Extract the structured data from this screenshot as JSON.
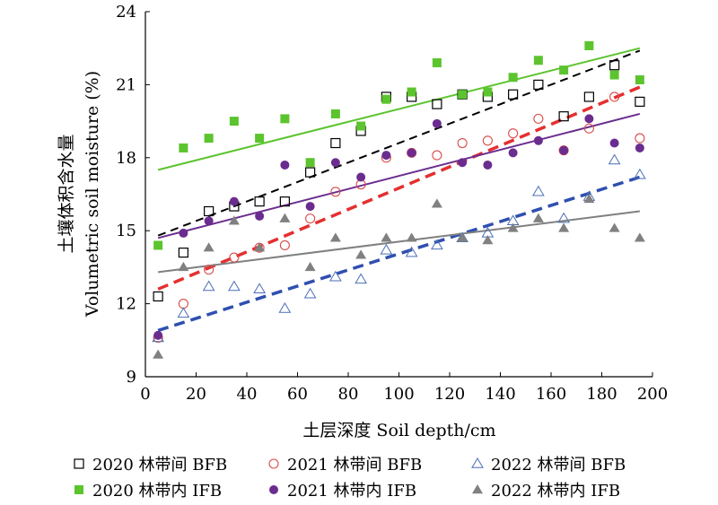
{
  "chart_data": {
    "type": "scatter",
    "title": "",
    "xlabel": "土层深度 Soil depth/cm",
    "ylabel_cn": "土壤体积含水量",
    "ylabel_en": "Volumetric soil moisture (%)",
    "xlim": [
      0,
      200
    ],
    "ylim": [
      9,
      24
    ],
    "xticks": [
      "0",
      "20",
      "40",
      "60",
      "80",
      "100",
      "120",
      "140",
      "160",
      "180",
      "200"
    ],
    "yticks": [
      "9",
      "12",
      "15",
      "18",
      "21",
      "24"
    ],
    "grid": false,
    "legend_position": "bottom",
    "x": [
      5,
      15,
      25,
      35,
      45,
      55,
      65,
      75,
      85,
      95,
      105,
      115,
      125,
      135,
      145,
      155,
      165,
      175,
      185,
      195
    ],
    "series": [
      {
        "name": "2020 林带间 BFB",
        "marker": "open-square",
        "color": "#000000",
        "values": [
          12.3,
          14.1,
          15.8,
          16.0,
          16.2,
          16.2,
          17.4,
          18.6,
          19.1,
          20.5,
          20.5,
          20.2,
          20.6,
          20.5,
          20.6,
          21.0,
          19.7,
          20.5,
          21.8,
          20.3
        ],
        "trend": {
          "from": [
            5,
            14.8
          ],
          "to": [
            195,
            22.4
          ],
          "color": "#000000",
          "dashed": true,
          "width": 2
        }
      },
      {
        "name": "2021 林带间 BFB",
        "marker": "open-circle",
        "color": "#d94b4b",
        "values": [
          10.6,
          12.0,
          13.4,
          13.9,
          14.3,
          14.4,
          15.5,
          16.6,
          16.9,
          18.0,
          18.2,
          18.1,
          18.6,
          18.7,
          19.0,
          19.6,
          18.3,
          19.2,
          20.5,
          18.8
        ],
        "trend": {
          "from": [
            5,
            12.6
          ],
          "to": [
            195,
            20.9
          ],
          "color": "#e52f2f",
          "dashed": true,
          "width": 3.5
        }
      },
      {
        "name": "2022 林带间 BFB",
        "marker": "open-triangle",
        "color": "#4a6fb5",
        "values": [
          10.6,
          11.6,
          12.7,
          12.7,
          12.6,
          11.8,
          12.4,
          13.1,
          13.0,
          14.2,
          14.1,
          14.4,
          14.7,
          14.9,
          15.4,
          16.6,
          15.5,
          16.4,
          17.9,
          17.3
        ],
        "trend": {
          "from": [
            5,
            10.9
          ],
          "to": [
            195,
            17.2
          ],
          "color": "#2f4fb0",
          "dashed": true,
          "width": 3.5
        }
      },
      {
        "name": "2020 林带内 IFB",
        "marker": "filled-square",
        "color": "#5cc42e",
        "values": [
          14.4,
          18.4,
          18.8,
          19.5,
          18.8,
          19.6,
          17.8,
          19.8,
          19.3,
          20.4,
          20.7,
          21.9,
          20.6,
          20.7,
          21.3,
          22.0,
          21.6,
          22.6,
          21.4,
          21.2
        ],
        "trend": {
          "from": [
            5,
            17.5
          ],
          "to": [
            195,
            22.5
          ],
          "color": "#5cc42e",
          "dashed": false,
          "width": 2
        }
      },
      {
        "name": "2021 林带内 IFB",
        "marker": "filled-circle",
        "color": "#6a2d8f",
        "values": [
          10.7,
          14.9,
          15.4,
          16.2,
          15.6,
          17.7,
          16.0,
          17.8,
          17.2,
          18.1,
          18.2,
          19.4,
          17.8,
          17.7,
          18.2,
          18.7,
          18.3,
          19.6,
          18.6,
          18.4
        ],
        "trend": {
          "from": [
            5,
            14.7
          ],
          "to": [
            195,
            19.8
          ],
          "color": "#6a2d8f",
          "dashed": false,
          "width": 2
        }
      },
      {
        "name": "2022 林带内 IFB",
        "marker": "filled-triangle",
        "color": "#808080",
        "values": [
          9.9,
          13.5,
          14.3,
          15.4,
          14.3,
          15.5,
          13.5,
          14.7,
          14.0,
          14.7,
          14.7,
          16.1,
          14.7,
          14.6,
          15.1,
          15.5,
          15.1,
          16.3,
          15.1,
          14.7
        ],
        "trend": {
          "from": [
            5,
            13.3
          ],
          "to": [
            195,
            15.8
          ],
          "color": "#808080",
          "dashed": false,
          "width": 2
        }
      }
    ]
  }
}
